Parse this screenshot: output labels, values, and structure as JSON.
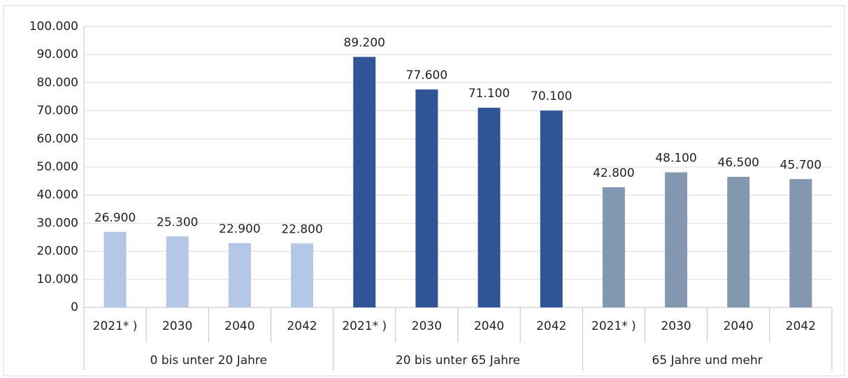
{
  "chart_data": {
    "type": "bar",
    "groups": [
      {
        "name": "0 bis unter 20 Jahre",
        "color": "#b4c7e7",
        "categories": [
          "2021* )",
          "2030",
          "2040",
          "2042"
        ],
        "values": [
          26900,
          25300,
          22900,
          22800
        ],
        "value_labels": [
          "26.900",
          "25.300",
          "22.900",
          "22.800"
        ]
      },
      {
        "name": "20 bis unter 65 Jahre",
        "color": "#2f5597",
        "categories": [
          "2021* )",
          "2030",
          "2040",
          "2042"
        ],
        "values": [
          89200,
          77600,
          71100,
          70100
        ],
        "value_labels": [
          "89.200",
          "77.600",
          "71.100",
          "70.100"
        ]
      },
      {
        "name": "65 Jahre und mehr",
        "color": "#8497b0",
        "categories": [
          "2021* )",
          "2030",
          "2040",
          "2042"
        ],
        "values": [
          42800,
          48100,
          46500,
          45700
        ],
        "value_labels": [
          "42.800",
          "48.100",
          "46.500",
          "45.700"
        ]
      }
    ],
    "ylim": [
      0,
      100000
    ],
    "yticks": [
      0,
      {
        "value": 10000,
        "label": "10.000"
      },
      {
        "value": 20000,
        "label": "20.000"
      },
      {
        "value": 30000,
        "label": "30.000"
      },
      {
        "value": 40000,
        "label": "40.000"
      },
      {
        "value": 50000,
        "label": "50.000"
      },
      {
        "value": 60000,
        "label": "60.000"
      },
      {
        "value": 70000,
        "label": "70.000"
      },
      {
        "value": 80000,
        "label": "80.000"
      },
      {
        "value": 90000,
        "label": "90.000"
      },
      {
        "value": 100000,
        "label": "100.000"
      }
    ],
    "grid": true
  }
}
